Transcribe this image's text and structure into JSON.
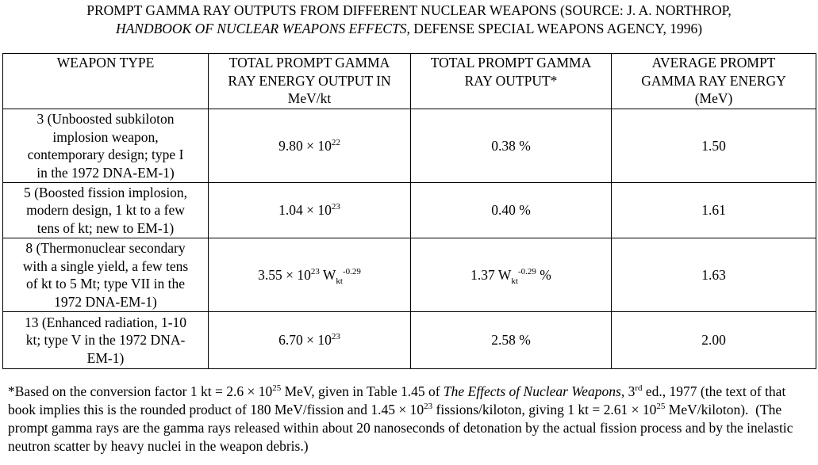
{
  "title": [
    [
      {
        "text": "PROMPT GAMMA RAY OUTPUTS FROM DIFFERENT NUCLEAR WEAPONS (SOURCE: J. A. NORTHROP,"
      }
    ],
    [
      {
        "text": "HANDBOOK OF NUCLEAR WEAPONS EFFECTS,",
        "style": "italic"
      },
      {
        "text": " DEFENSE SPECIAL WEAPONS AGENCY, 1996)"
      }
    ]
  ],
  "table": {
    "header": [
      [
        "WEAPON TYPE"
      ],
      [
        "TOTAL PROMPT GAMMA",
        "RAY ENERGY OUTPUT IN",
        "MeV/kt"
      ],
      [
        "TOTAL PROMPT GAMMA",
        "RAY OUTPUT*"
      ],
      [
        "AVERAGE PROMPT",
        "GAMMA RAY ENERGY",
        "(MeV)"
      ]
    ],
    "rows": [
      [
        [
          "3 (Unboosted subkiloton",
          "implosion weapon,",
          "contemporary design; type I",
          "in the 1972 DNA-EM-1)"
        ],
        [
          {
            "text": "9.80 × 10"
          },
          {
            "text": "22",
            "style": "sup"
          }
        ],
        [
          {
            "text": "0.38 %"
          }
        ],
        [
          {
            "text": "1.50"
          }
        ]
      ],
      [
        [
          "5 (Boosted fission implosion,",
          "modern design, 1 kt to a few",
          "tens of kt; new to EM-1)"
        ],
        [
          {
            "text": "1.04 × 10"
          },
          {
            "text": "23",
            "style": "sup"
          }
        ],
        [
          {
            "text": "0.40 %"
          }
        ],
        [
          {
            "text": "1.61"
          }
        ]
      ],
      [
        [
          "8 (Thermonuclear secondary",
          "with a single yield, a few tens",
          "of kt to 5 Mt; type VII in the",
          "1972 DNA-EM-1)"
        ],
        [
          {
            "text": "3.55 × 10"
          },
          {
            "text": "23",
            "style": "sup"
          },
          {
            "text": " W"
          },
          {
            "text": "kt",
            "style": "sub"
          },
          {
            "text": "-0.29",
            "style": "sup"
          }
        ],
        [
          {
            "text": "1.37 W"
          },
          {
            "text": "kt",
            "style": "sub"
          },
          {
            "text": "-0.29",
            "style": "sup"
          },
          {
            "text": " %"
          }
        ],
        [
          {
            "text": "1.63"
          }
        ]
      ],
      [
        [
          "13 (Enhanced radiation, 1-10",
          "kt; type V in the 1972 DNA-",
          "EM-1)"
        ],
        [
          {
            "text": "6.70 × 10"
          },
          {
            "text": "23",
            "style": "sup"
          }
        ],
        [
          {
            "text": "2.58 %"
          }
        ],
        [
          {
            "text": "2.00"
          }
        ]
      ]
    ]
  },
  "footnote": [
    {
      "text": "*Based on the conversion factor 1 kt = 2.6 × 10"
    },
    {
      "text": "25",
      "style": "sup"
    },
    {
      "text": " MeV, given in Table 1.45 of "
    },
    {
      "text": "The Effects of Nuclear Weapons,",
      "style": "italic"
    },
    {
      "text": " 3"
    },
    {
      "text": "rd",
      "style": "sup"
    },
    {
      "text": " ed., 1977 (the text of that book implies this is the rounded product of 180 MeV/fission and 1.45 × 10"
    },
    {
      "text": "23",
      "style": "sup"
    },
    {
      "text": " fissions/kiloton, giving 1 kt = 2.61 × 10"
    },
    {
      "text": "25",
      "style": "sup"
    },
    {
      "text": " MeV/kiloton).  (The prompt gamma rays are the gamma rays released within about 20 nanoseconds of detonation by the actual fission process and by the inelastic neutron scatter by heavy nuclei in the weapon debris.)"
    }
  ]
}
